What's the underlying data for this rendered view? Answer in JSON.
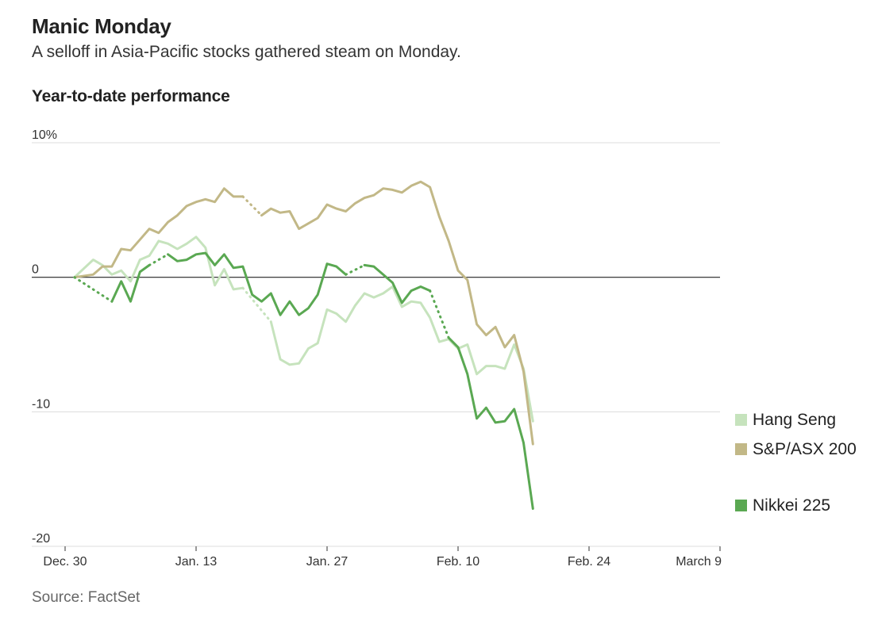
{
  "header": {
    "title": "Manic Monday",
    "subtitle": "A selloff in Asia-Pacific stocks gathered steam on Monday.",
    "chart_heading": "Year-to-date performance"
  },
  "footer": {
    "source": "Source: FactSet"
  },
  "colors": {
    "hang_seng": "#c6e3bd",
    "asx": "#c2b887",
    "nikkei": "#5aa852",
    "grid": "#dcdcdc",
    "zero": "#222222"
  },
  "chart_data": {
    "type": "line",
    "title": "Year-to-date performance",
    "ylabel": "",
    "ylim": [
      -20,
      10
    ],
    "yticks": [
      {
        "value": 10,
        "label": "10%"
      },
      {
        "value": 0,
        "label": "0"
      },
      {
        "value": -10,
        "label": "-10"
      },
      {
        "value": -20,
        "label": "-20"
      }
    ],
    "xlim": [
      "2019-12-30",
      "2020-03-09"
    ],
    "xticks": [
      {
        "date": "2019-12-30",
        "label": "Dec. 30"
      },
      {
        "date": "2020-01-13",
        "label": "Jan. 13"
      },
      {
        "date": "2020-01-27",
        "label": "Jan. 27"
      },
      {
        "date": "2020-02-10",
        "label": "Feb. 10"
      },
      {
        "date": "2020-02-24",
        "label": "Feb. 24"
      },
      {
        "date": "2020-03-09",
        "label": "March 9"
      }
    ],
    "grid": true,
    "legend_position": "right",
    "series": [
      {
        "name": "Hang Seng",
        "color": "#c6e3bd",
        "segments": [
          {
            "style": "solid",
            "points": [
              [
                "2019-12-31",
                0
              ],
              [
                "2020-01-02",
                1.3
              ],
              [
                "2020-01-03",
                0.9
              ],
              [
                "2020-01-04",
                0.2
              ],
              [
                "2020-01-05",
                0.5
              ],
              [
                "2020-01-06",
                -0.3
              ],
              [
                "2020-01-07",
                1.3
              ],
              [
                "2020-01-08",
                1.6
              ],
              [
                "2020-01-09",
                2.7
              ],
              [
                "2020-01-10",
                2.5
              ],
              [
                "2020-01-11",
                2.1
              ],
              [
                "2020-01-12",
                2.5
              ],
              [
                "2020-01-13",
                3.0
              ],
              [
                "2020-01-14",
                2.2
              ],
              [
                "2020-01-15",
                -0.6
              ],
              [
                "2020-01-16",
                0.6
              ],
              [
                "2020-01-17",
                -0.9
              ],
              [
                "2020-01-18",
                -0.8
              ]
            ]
          },
          {
            "style": "dotted",
            "points": [
              [
                "2020-01-18",
                -0.8
              ],
              [
                "2020-01-21",
                -3.3
              ]
            ]
          },
          {
            "style": "solid",
            "points": [
              [
                "2020-01-21",
                -3.3
              ],
              [
                "2020-01-22",
                -6.1
              ],
              [
                "2020-01-23",
                -6.5
              ],
              [
                "2020-01-24",
                -6.4
              ],
              [
                "2020-01-25",
                -5.3
              ],
              [
                "2020-01-26",
                -4.9
              ],
              [
                "2020-01-27",
                -2.4
              ],
              [
                "2020-01-28",
                -2.7
              ],
              [
                "2020-01-29",
                -3.3
              ],
              [
                "2020-01-30",
                -2.1
              ],
              [
                "2020-01-31",
                -1.2
              ],
              [
                "2020-02-01",
                -1.5
              ],
              [
                "2020-02-02",
                -1.2
              ],
              [
                "2020-02-03",
                -0.7
              ],
              [
                "2020-02-04",
                -2.2
              ],
              [
                "2020-02-05",
                -1.8
              ],
              [
                "2020-02-06",
                -1.9
              ],
              [
                "2020-02-07",
                -3.0
              ],
              [
                "2020-02-08",
                -4.8
              ],
              [
                "2020-02-09",
                -4.6
              ],
              [
                "2020-02-10",
                -5.3
              ],
              [
                "2020-02-11",
                -5.0
              ],
              [
                "2020-02-12",
                -7.2
              ],
              [
                "2020-02-13",
                -6.6
              ],
              [
                "2020-02-14",
                -6.6
              ],
              [
                "2020-02-15",
                -6.8
              ],
              [
                "2020-02-16",
                -5.0
              ],
              [
                "2020-02-17",
                -6.8
              ],
              [
                "2020-02-18",
                -10.7
              ]
            ]
          }
        ]
      },
      {
        "name": "S&P/ASX 200",
        "color": "#c2b887",
        "segments": [
          {
            "style": "solid",
            "points": [
              [
                "2019-12-31",
                0
              ],
              [
                "2020-01-02",
                0.2
              ],
              [
                "2020-01-03",
                0.8
              ],
              [
                "2020-01-04",
                0.8
              ],
              [
                "2020-01-05",
                2.1
              ],
              [
                "2020-01-06",
                2.0
              ],
              [
                "2020-01-07",
                2.8
              ],
              [
                "2020-01-08",
                3.6
              ],
              [
                "2020-01-09",
                3.3
              ],
              [
                "2020-01-10",
                4.1
              ],
              [
                "2020-01-11",
                4.6
              ],
              [
                "2020-01-12",
                5.3
              ],
              [
                "2020-01-13",
                5.6
              ],
              [
                "2020-01-14",
                5.8
              ],
              [
                "2020-01-15",
                5.6
              ],
              [
                "2020-01-16",
                6.6
              ],
              [
                "2020-01-17",
                6.0
              ],
              [
                "2020-01-18",
                6.0
              ]
            ]
          },
          {
            "style": "dotted",
            "points": [
              [
                "2020-01-18",
                6.0
              ],
              [
                "2020-01-20",
                4.6
              ]
            ]
          },
          {
            "style": "solid",
            "points": [
              [
                "2020-01-20",
                4.6
              ],
              [
                "2020-01-21",
                5.1
              ],
              [
                "2020-01-22",
                4.8
              ],
              [
                "2020-01-23",
                4.9
              ],
              [
                "2020-01-24",
                3.6
              ],
              [
                "2020-01-25",
                4.0
              ],
              [
                "2020-01-26",
                4.4
              ],
              [
                "2020-01-27",
                5.4
              ],
              [
                "2020-01-28",
                5.1
              ],
              [
                "2020-01-29",
                4.9
              ],
              [
                "2020-01-30",
                5.5
              ],
              [
                "2020-01-31",
                5.9
              ],
              [
                "2020-02-01",
                6.1
              ],
              [
                "2020-02-02",
                6.6
              ],
              [
                "2020-02-03",
                6.5
              ],
              [
                "2020-02-04",
                6.3
              ],
              [
                "2020-02-05",
                6.8
              ],
              [
                "2020-02-06",
                7.1
              ],
              [
                "2020-02-07",
                6.7
              ],
              [
                "2020-02-08",
                4.5
              ],
              [
                "2020-02-09",
                2.7
              ],
              [
                "2020-02-10",
                0.5
              ],
              [
                "2020-02-11",
                -0.2
              ],
              [
                "2020-02-12",
                -3.5
              ],
              [
                "2020-02-13",
                -4.3
              ],
              [
                "2020-02-14",
                -3.7
              ],
              [
                "2020-02-15",
                -5.2
              ],
              [
                "2020-02-16",
                -4.3
              ],
              [
                "2020-02-17",
                -7.0
              ],
              [
                "2020-02-18",
                -12.4
              ]
            ]
          }
        ]
      },
      {
        "name": "Nikkei 225",
        "color": "#5aa852",
        "segments": [
          {
            "style": "dotted",
            "points": [
              [
                "2019-12-31",
                0
              ],
              [
                "2020-01-04",
                -1.8
              ]
            ]
          },
          {
            "style": "solid",
            "points": [
              [
                "2020-01-04",
                -1.8
              ],
              [
                "2020-01-05",
                -0.3
              ],
              [
                "2020-01-06",
                -1.8
              ],
              [
                "2020-01-07",
                0.4
              ],
              [
                "2020-01-08",
                0.9
              ]
            ]
          },
          {
            "style": "dotted",
            "points": [
              [
                "2020-01-08",
                0.9
              ],
              [
                "2020-01-10",
                1.7
              ]
            ]
          },
          {
            "style": "solid",
            "points": [
              [
                "2020-01-10",
                1.7
              ],
              [
                "2020-01-11",
                1.2
              ],
              [
                "2020-01-12",
                1.3
              ],
              [
                "2020-01-13",
                1.7
              ],
              [
                "2020-01-14",
                1.8
              ],
              [
                "2020-01-15",
                0.9
              ],
              [
                "2020-01-16",
                1.7
              ],
              [
                "2020-01-17",
                0.7
              ],
              [
                "2020-01-18",
                0.8
              ],
              [
                "2020-01-19",
                -1.3
              ],
              [
                "2020-01-20",
                -1.8
              ],
              [
                "2020-01-21",
                -1.2
              ],
              [
                "2020-01-22",
                -2.8
              ],
              [
                "2020-01-23",
                -1.8
              ],
              [
                "2020-01-24",
                -2.8
              ],
              [
                "2020-01-25",
                -2.3
              ],
              [
                "2020-01-26",
                -1.3
              ],
              [
                "2020-01-27",
                1.0
              ],
              [
                "2020-01-28",
                0.8
              ],
              [
                "2020-01-29",
                0.2
              ]
            ]
          },
          {
            "style": "dotted",
            "points": [
              [
                "2020-01-29",
                0.2
              ],
              [
                "2020-01-31",
                0.9
              ]
            ]
          },
          {
            "style": "solid",
            "points": [
              [
                "2020-01-31",
                0.9
              ],
              [
                "2020-02-01",
                0.8
              ],
              [
                "2020-02-02",
                0.2
              ],
              [
                "2020-02-03",
                -0.4
              ],
              [
                "2020-02-04",
                -1.9
              ],
              [
                "2020-02-05",
                -1.0
              ],
              [
                "2020-02-06",
                -0.7
              ],
              [
                "2020-02-07",
                -1.0
              ]
            ]
          },
          {
            "style": "dotted",
            "points": [
              [
                "2020-02-07",
                -1.0
              ],
              [
                "2020-02-09",
                -4.5
              ]
            ]
          },
          {
            "style": "solid",
            "points": [
              [
                "2020-02-09",
                -4.5
              ],
              [
                "2020-02-10",
                -5.2
              ],
              [
                "2020-02-11",
                -7.2
              ],
              [
                "2020-02-12",
                -10.5
              ],
              [
                "2020-02-13",
                -9.7
              ],
              [
                "2020-02-14",
                -10.8
              ],
              [
                "2020-02-15",
                -10.7
              ],
              [
                "2020-02-16",
                -9.8
              ],
              [
                "2020-02-17",
                -12.3
              ],
              [
                "2020-02-18",
                -17.2
              ]
            ]
          }
        ]
      }
    ]
  }
}
